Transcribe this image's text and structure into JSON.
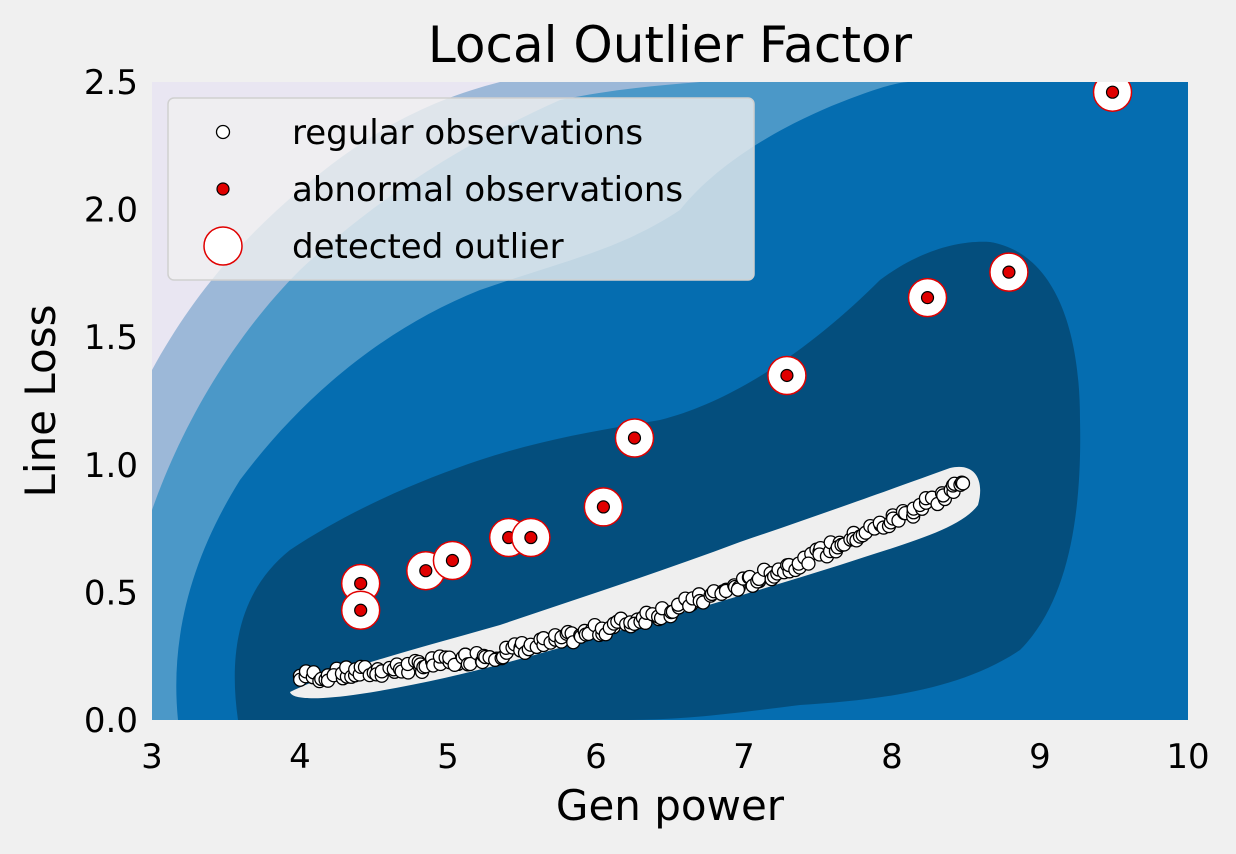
{
  "chart_data": {
    "type": "scatter",
    "title": "Local Outlier Factor",
    "xlabel": "Gen  power",
    "ylabel": "Line  Loss",
    "xlim": [
      3,
      10
    ],
    "ylim": [
      0,
      2.5
    ],
    "xticks": [
      "3",
      "4",
      "5",
      "6",
      "7",
      "8",
      "9",
      "10"
    ],
    "yticks": [
      "0.0",
      "0.5",
      "1.0",
      "1.5",
      "2.0",
      "2.5"
    ],
    "grid": false,
    "legend_position": "upper-left",
    "legend": [
      {
        "label": "regular observations",
        "marker": "white-circle"
      },
      {
        "label": "abnormal observations",
        "marker": "red-circle"
      },
      {
        "label": "detected outlier",
        "marker": "large-hollow-circle"
      }
    ],
    "series": [
      {
        "name": "regular observations",
        "color": "#ffffff",
        "x_range": [
          4.0,
          8.5
        ],
        "y_range": [
          0.17,
          0.93
        ],
        "count": 220
      },
      {
        "name": "abnormal observations",
        "color": "#e00000",
        "x": [
          4.41,
          4.41,
          4.85,
          5.03,
          5.41,
          5.56,
          6.05,
          6.26,
          7.29,
          8.24,
          8.79,
          9.49
        ],
        "y": [
          0.535,
          0.43,
          0.585,
          0.625,
          0.715,
          0.715,
          0.835,
          1.105,
          1.35,
          1.655,
          1.755,
          2.46
        ]
      }
    ],
    "outlier_marker_color": "#e00000"
  }
}
